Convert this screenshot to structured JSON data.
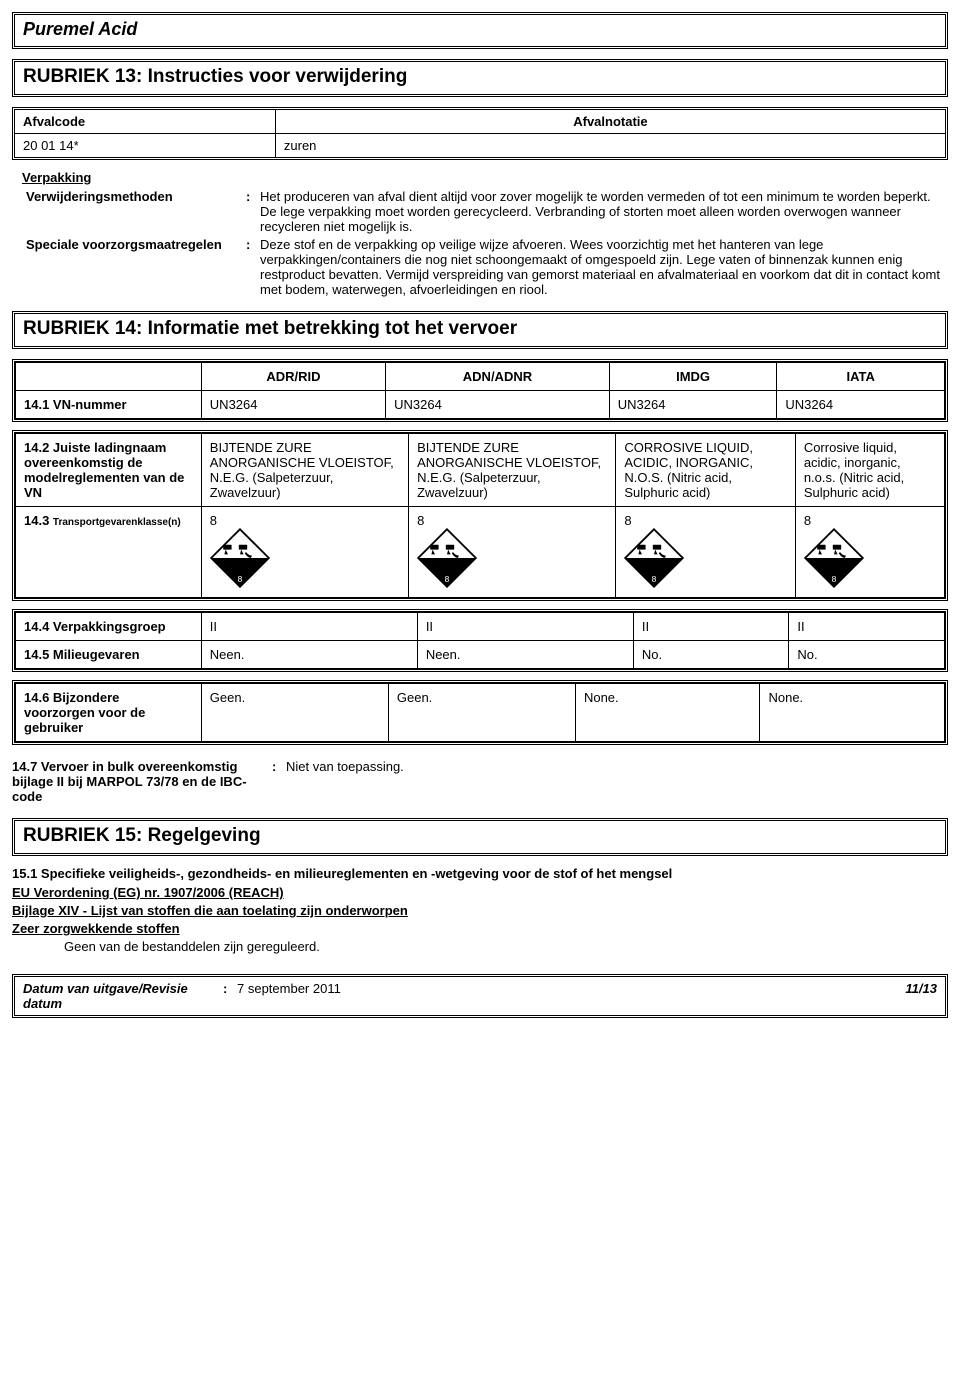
{
  "header": {
    "product": "Puremel Acid"
  },
  "r13": {
    "title": "RUBRIEK 13: Instructies voor verwijdering",
    "col1": "Afvalcode",
    "col2": "Afvalnotatie",
    "code": "20 01 14*",
    "notatie": "zuren",
    "verpakking_h": "Verpakking",
    "verwijder_label": "Verwijderingsmethoden",
    "verwijder_val": "Het produceren van afval dient altijd voor zover mogelijk te worden vermeden of tot een minimum te worden beperkt. De lege verpakking moet worden gerecycleerd. Verbranding of storten moet alleen worden overwogen wanneer recycleren niet mogelijk is.",
    "speciale_label": "Speciale voorzorgsmaatregelen",
    "speciale_val": "Deze stof en de verpakking op veilige wijze afvoeren. Wees voorzichtig met het hanteren van lege verpakkingen/containers die nog niet schoongemaakt of omgespoeld zijn. Lege vaten of binnenzak kunnen enig restproduct bevatten. Vermijd verspreiding van gemorst materiaal en afvalmateriaal en voorkom dat dit in contact komt met bodem, waterwegen, afvoerleidingen en riool."
  },
  "r14": {
    "title": "RUBRIEK 14: Informatie met betrekking tot het vervoer",
    "headers": [
      "ADR/RID",
      "ADN/ADNR",
      "IMDG",
      "IATA"
    ],
    "vn_label": "14.1 VN-nummer",
    "vn_vals": [
      "UN3264",
      "UN3264",
      "UN3264",
      "UN3264"
    ],
    "lading_label": "14.2 Juiste ladingnaam overeenkomstig de modelreglementen van de VN",
    "lading_vals": [
      "BIJTENDE ZURE ANORGANISCHE VLOEISTOF, N.E.G. (Salpeterzuur, Zwavelzuur)",
      "BIJTENDE ZURE ANORGANISCHE VLOEISTOF, N.E.G. (Salpeterzuur, Zwavelzuur)",
      "CORROSIVE LIQUID, ACIDIC, INORGANIC, N.O.S. (Nitric acid, Sulphuric acid)",
      "Corrosive liquid, acidic, inorganic, n.o.s. (Nitric acid, Sulphuric acid)"
    ],
    "klasse_label": "14.3 ",
    "klasse_label_sm": "Transportgevarenklasse(n)",
    "klasse_vals": [
      "8",
      "8",
      "8",
      "8"
    ],
    "vpgroep_label": "14.4 Verpakkingsgroep",
    "vpgroep_vals": [
      "II",
      "II",
      "II",
      "II"
    ],
    "milieu_label": "14.5 Milieugevaren",
    "milieu_vals": [
      "Neen.",
      "Neen.",
      "No.",
      "No."
    ],
    "bijz_label": "14.6 Bijzondere voorzorgen voor de gebruiker",
    "bijz_vals": [
      "Geen.",
      "Geen.",
      "None.",
      "None."
    ],
    "bulk_label": "14.7 Vervoer in bulk overeenkomstig bijlage II bij MARPOL 73/78 en de IBC-code",
    "bulk_val": "Niet van toepassing."
  },
  "r15": {
    "title": "RUBRIEK 15: Regelgeving",
    "sub1": "15.1 Specifieke veiligheids-, gezondheids- en milieureglementen en -wetgeving voor de stof of het mengsel",
    "eu": "EU Verordening (EG) nr. 1907/2006 (REACH)",
    "bijlage": "Bijlage XIV - Lijst van stoffen die aan toelating zijn onderworpen",
    "zeer": "Zeer zorgwekkende stoffen",
    "geen": "Geen van de bestanddelen zijn gereguleerd."
  },
  "footer": {
    "label": "Datum van uitgave/Revisie datum",
    "date": "7 september 2011",
    "page": "11/13"
  }
}
